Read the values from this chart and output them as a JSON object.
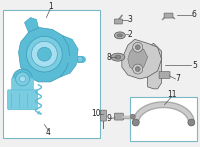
{
  "bg_color": "#f0f0f0",
  "box1_border": "#7ab8c8",
  "box11_border": "#7ab8c8",
  "part_color": "#5bbcd6",
  "part_dark": "#3a9ab8",
  "part_mid": "#7acce0",
  "part_light": "#a8dff0",
  "gray_dark": "#888888",
  "gray_mid": "#aaaaaa",
  "gray_light": "#cccccc",
  "line_color": "#555555",
  "label_color": "#222222",
  "font_size": 5.5
}
